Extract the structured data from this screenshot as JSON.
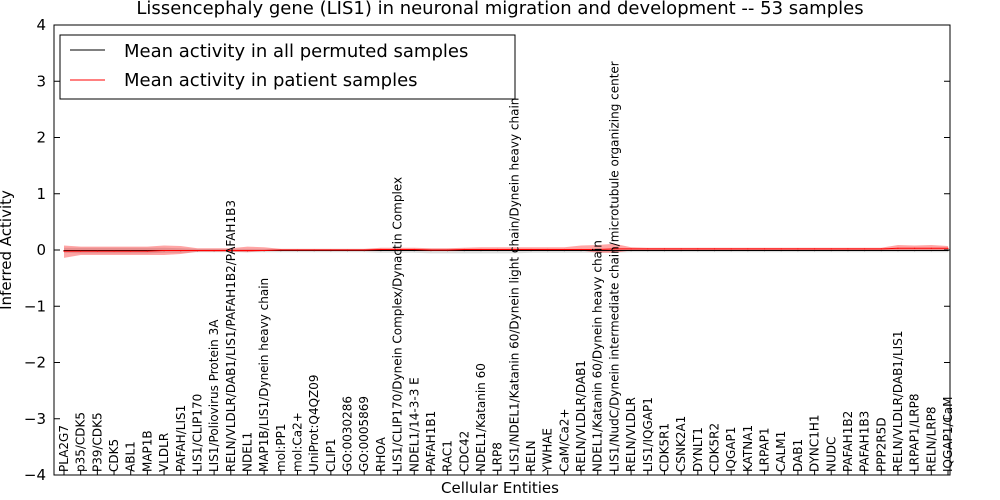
{
  "chart_data": {
    "type": "line",
    "title": "Lissencephaly gene (LIS1) in neuronal migration and development -- 53 samples",
    "xlabel": "Cellular Entities",
    "ylabel": "Inferred Activity",
    "ylim": [
      -4,
      4
    ],
    "yticks": [
      "4",
      "3",
      "2",
      "1",
      "0",
      "−1",
      "−2",
      "−3",
      "−4"
    ],
    "legend": {
      "placement": "top-left",
      "entries": [
        {
          "label": "Mean activity in all permuted samples",
          "color": "#000000"
        },
        {
          "label": "Mean activity in patient samples",
          "color": "#ff0000"
        }
      ]
    },
    "categories": [
      "PLA2G7",
      "p35/CDK5",
      "P39/CDK5",
      "CDK5",
      "ABL1",
      "MAP1B",
      "VLDLR",
      "PAFAH/LIS1",
      "LIS1/CLIP170",
      "LIS1/Poliovirus Protein 3A",
      "RELN/VLDLR/DAB1/LIS1/PAFAH1B2/PAFAH1B3",
      "NDEL1",
      "MAP1B/LIS1/Dynein heavy chain",
      "mol:PP1",
      "mol:Ca2+",
      "UniProt:Q4QZ09",
      "CLIP1",
      "GO:0030286",
      "GO:0005869",
      "RHOA",
      "LIS1/CLIP170/Dynein Complex/Dynactin Complex",
      "NDEL1/14-3-3 E",
      "PAFAH1B1",
      "RAC1",
      "CDC42",
      "NDEL1/Katanin 60",
      "LRP8",
      "LIS1/NDEL1/Katanin 60/Dynein light chain/Dynein heavy chain",
      "RELN",
      "YWHAE",
      "CaM/Ca2+",
      "RELN/VLDLR/DAB1",
      "NDEL1/Katanin 60/Dynein heavy chain",
      "LIS1/NudC/Dynein intermediate chain/microtubule organizing center",
      "RELN/VLDLR",
      "LIS1/IQGAP1",
      "CDK5R1",
      "CSNK2A1",
      "DYNLT1",
      "CDK5R2",
      "IQGAP1",
      "KATNA1",
      "LRPAP1",
      "CALM1",
      "DAB1",
      "DYNC1H1",
      "NUDC",
      "PAFAH1B2",
      "PAFAH1B3",
      "PPP2R5D",
      "RELN/VLDLR/DAB1/LIS1",
      "LRPAP1/LRP8",
      "RELN/LRP8",
      "IQGAP1/CaM"
    ],
    "series": [
      {
        "name": "Mean activity in all permuted samples",
        "color": "#000000",
        "values": [
          -0.01,
          -0.01,
          -0.01,
          -0.01,
          -0.01,
          -0.01,
          -0.01,
          -0.01,
          -0.01,
          -0.01,
          -0.01,
          -0.01,
          -0.01,
          -0.01,
          -0.01,
          -0.01,
          -0.01,
          -0.01,
          -0.01,
          -0.01,
          -0.01,
          -0.01,
          -0.01,
          -0.01,
          -0.01,
          -0.01,
          -0.01,
          -0.01,
          -0.01,
          -0.01,
          -0.01,
          -0.01,
          -0.01,
          -0.01,
          -0.01,
          -0.01,
          -0.01,
          -0.01,
          -0.01,
          -0.01,
          -0.01,
          -0.01,
          -0.01,
          -0.01,
          -0.01,
          -0.01,
          -0.01,
          -0.01,
          -0.01,
          -0.01,
          -0.01,
          -0.01,
          -0.01,
          -0.01
        ],
        "band_low": [
          -0.05,
          -0.06,
          -0.06,
          -0.06,
          -0.06,
          -0.06,
          -0.05,
          -0.05,
          -0.04,
          -0.04,
          -0.04,
          -0.04,
          -0.04,
          -0.04,
          -0.04,
          -0.04,
          -0.04,
          -0.04,
          -0.04,
          -0.05,
          -0.05,
          -0.05,
          -0.06,
          -0.06,
          -0.06,
          -0.06,
          -0.06,
          -0.06,
          -0.05,
          -0.05,
          -0.05,
          -0.05,
          -0.05,
          -0.05,
          -0.04,
          -0.04,
          -0.04,
          -0.04,
          -0.04,
          -0.04,
          -0.04,
          -0.04,
          -0.04,
          -0.04,
          -0.04,
          -0.04,
          -0.04,
          -0.04,
          -0.04,
          -0.04,
          -0.04,
          -0.04,
          -0.04,
          -0.04
        ],
        "band_high": [
          0.04,
          0.04,
          0.04,
          0.04,
          0.04,
          0.04,
          0.04,
          0.03,
          0.02,
          0.02,
          0.02,
          0.02,
          0.02,
          0.02,
          0.02,
          0.02,
          0.02,
          0.02,
          0.02,
          0.02,
          0.02,
          0.02,
          0.02,
          0.02,
          0.02,
          0.02,
          0.02,
          0.02,
          0.02,
          0.02,
          0.02,
          0.02,
          0.02,
          0.02,
          0.02,
          0.02,
          0.02,
          0.02,
          0.02,
          0.02,
          0.02,
          0.02,
          0.02,
          0.02,
          0.02,
          0.02,
          0.02,
          0.02,
          0.02,
          0.02,
          0.02,
          0.02,
          0.02,
          0.02
        ]
      },
      {
        "name": "Mean activity in patient samples",
        "color": "#ff0000",
        "values": [
          -0.02,
          -0.02,
          -0.02,
          -0.02,
          -0.02,
          -0.02,
          -0.01,
          -0.01,
          -0.01,
          -0.01,
          -0.01,
          -0.01,
          -0.01,
          0.0,
          0.0,
          0.0,
          0.0,
          0.0,
          0.0,
          0.01,
          0.01,
          0.01,
          0.0,
          0.0,
          0.01,
          0.01,
          0.01,
          0.01,
          0.01,
          0.01,
          0.01,
          0.01,
          0.01,
          0.02,
          0.02,
          0.02,
          0.02,
          0.02,
          0.02,
          0.02,
          0.02,
          0.02,
          0.02,
          0.02,
          0.02,
          0.02,
          0.02,
          0.02,
          0.02,
          0.02,
          0.03,
          0.03,
          0.03,
          0.03
        ],
        "band_low": [
          -0.14,
          -0.09,
          -0.09,
          -0.09,
          -0.09,
          -0.09,
          -0.09,
          -0.07,
          -0.03,
          -0.03,
          -0.03,
          -0.04,
          -0.02,
          -0.01,
          -0.01,
          -0.01,
          -0.01,
          -0.01,
          -0.01,
          -0.01,
          -0.01,
          -0.01,
          -0.01,
          -0.01,
          -0.01,
          -0.01,
          -0.01,
          -0.01,
          -0.01,
          -0.01,
          -0.01,
          -0.01,
          -0.05,
          -0.05,
          -0.01,
          -0.01,
          0.0,
          0.0,
          0.0,
          0.0,
          0.0,
          0.0,
          0.0,
          0.0,
          0.0,
          0.0,
          0.0,
          0.0,
          0.0,
          0.0,
          -0.01,
          -0.01,
          -0.01,
          -0.01
        ],
        "band_high": [
          0.08,
          0.06,
          0.06,
          0.06,
          0.06,
          0.06,
          0.08,
          0.07,
          0.03,
          0.03,
          0.03,
          0.06,
          0.05,
          0.02,
          0.02,
          0.02,
          0.02,
          0.02,
          0.02,
          0.04,
          0.04,
          0.04,
          0.03,
          0.03,
          0.04,
          0.05,
          0.05,
          0.05,
          0.05,
          0.05,
          0.05,
          0.08,
          0.09,
          0.11,
          0.05,
          0.04,
          0.04,
          0.04,
          0.04,
          0.04,
          0.04,
          0.04,
          0.04,
          0.04,
          0.04,
          0.04,
          0.04,
          0.04,
          0.04,
          0.04,
          0.09,
          0.08,
          0.09,
          0.07
        ]
      }
    ]
  }
}
